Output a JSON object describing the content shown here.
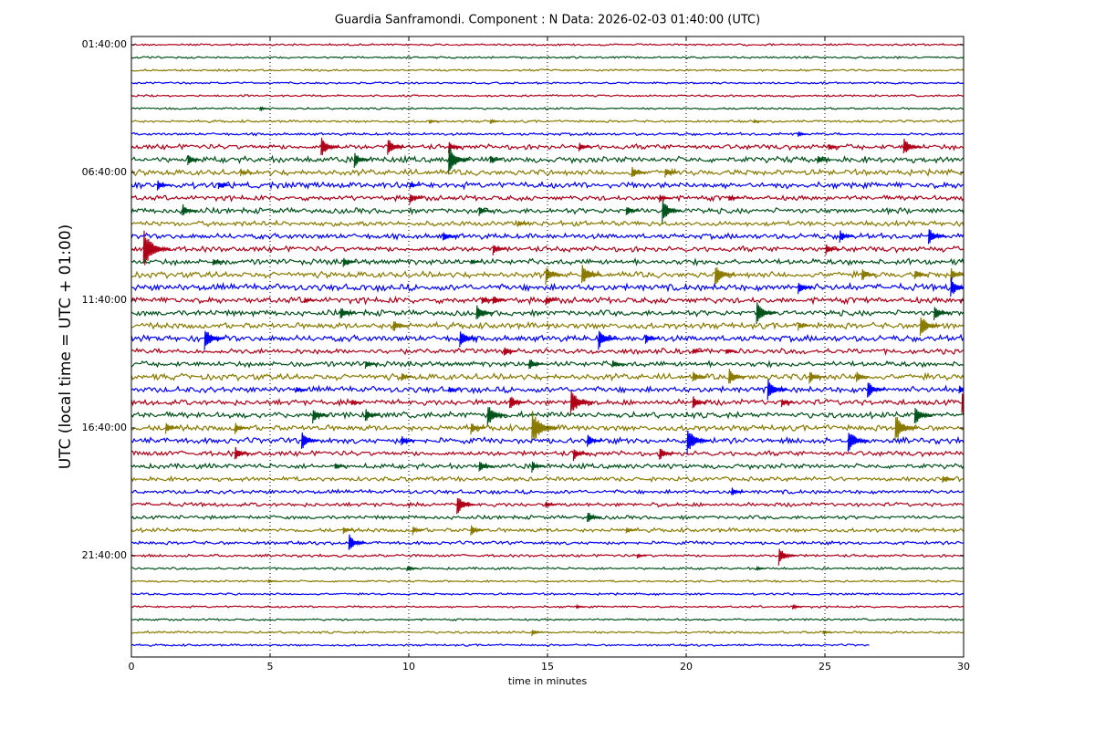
{
  "chart_data": {
    "type": "helicorder",
    "title": "Guardia Sanframondi. Component : N Data: 2026-02-03 01:40:00 (UTC)",
    "xlabel": "time in minutes",
    "ylabel": "UTC (local time = UTC + 01:00)",
    "xlim": [
      0,
      30
    ],
    "xticks": [
      0,
      5,
      10,
      15,
      20,
      25,
      30
    ],
    "ylim": [
      -0.64,
      47.93
    ],
    "y_inverted": true,
    "yticks": [
      {
        "value": 0,
        "label": "01:40:00"
      },
      {
        "value": 10,
        "label": "06:40:00"
      },
      {
        "value": 20,
        "label": "11:40:00"
      },
      {
        "value": 30,
        "label": "16:40:00"
      },
      {
        "value": 40,
        "label": "21:40:00"
      }
    ],
    "grid": true,
    "rows": [
      {
        "color": "#b00018",
        "noise": 0.06,
        "events": []
      },
      {
        "color": "#00531a",
        "noise": 0.06,
        "events": []
      },
      {
        "color": "#8a7a00",
        "noise": 0.06,
        "events": []
      },
      {
        "color": "#0000ff",
        "noise": 0.06,
        "events": []
      },
      {
        "color": "#b00018",
        "noise": 0.06,
        "events": []
      },
      {
        "color": "#00531a",
        "noise": 0.06,
        "events": [
          [
            4.7,
            0.2
          ]
        ]
      },
      {
        "color": "#8a7a00",
        "noise": 0.07,
        "events": [
          [
            10.8,
            0.2
          ],
          [
            13.0,
            0.2
          ],
          [
            22.5,
            0.15
          ]
        ]
      },
      {
        "color": "#0000ff",
        "noise": 0.08,
        "events": [
          [
            24.1,
            0.25
          ]
        ]
      },
      {
        "color": "#b00018",
        "noise": 0.15,
        "events": [
          [
            6.9,
            0.9
          ],
          [
            9.3,
            0.8
          ],
          [
            11.5,
            0.5
          ],
          [
            16.2,
            0.4
          ],
          [
            25.2,
            0.35
          ],
          [
            27.9,
            0.8
          ]
        ]
      },
      {
        "color": "#00531a",
        "noise": 0.18,
        "events": [
          [
            2.1,
            0.5
          ],
          [
            8.1,
            0.7
          ],
          [
            11.5,
            1.2
          ],
          [
            13.0,
            0.4
          ],
          [
            24.8,
            0.4
          ]
        ]
      },
      {
        "color": "#8a7a00",
        "noise": 0.17,
        "events": [
          [
            4.0,
            0.3
          ],
          [
            18.1,
            0.6
          ],
          [
            19.3,
            0.5
          ]
        ]
      },
      {
        "color": "#0000ff",
        "noise": 0.18,
        "events": [
          [
            1.0,
            0.5
          ],
          [
            3.2,
            0.4
          ],
          [
            10.1,
            0.3
          ]
        ]
      },
      {
        "color": "#b00018",
        "noise": 0.15,
        "events": [
          [
            10.1,
            0.5
          ],
          [
            19.1,
            0.4
          ],
          [
            21.6,
            0.3
          ]
        ]
      },
      {
        "color": "#00531a",
        "noise": 0.16,
        "events": [
          [
            1.9,
            0.6
          ],
          [
            12.6,
            0.4
          ],
          [
            17.9,
            0.5
          ],
          [
            19.2,
            1.0
          ]
        ]
      },
      {
        "color": "#8a7a00",
        "noise": 0.15,
        "events": [
          [
            14.0,
            0.3
          ]
        ]
      },
      {
        "color": "#0000ff",
        "noise": 0.16,
        "events": [
          [
            11.3,
            0.5
          ],
          [
            25.6,
            0.6
          ],
          [
            28.8,
            0.8
          ]
        ]
      },
      {
        "color": "#b00018",
        "noise": 0.16,
        "events": [
          [
            0.5,
            1.6
          ],
          [
            13.1,
            0.5
          ],
          [
            25.1,
            0.5
          ]
        ]
      },
      {
        "color": "#00531a",
        "noise": 0.17,
        "events": [
          [
            3.0,
            0.4
          ],
          [
            7.7,
            0.5
          ],
          [
            12.3,
            0.3
          ]
        ]
      },
      {
        "color": "#8a7a00",
        "noise": 0.18,
        "events": [
          [
            15.0,
            0.8
          ],
          [
            16.3,
            1.0
          ],
          [
            21.1,
            1.0
          ],
          [
            26.4,
            0.6
          ],
          [
            28.3,
            0.5
          ],
          [
            29.6,
            0.6
          ]
        ]
      },
      {
        "color": "#0000ff",
        "noise": 0.2,
        "events": [
          [
            24.1,
            0.6
          ],
          [
            29.6,
            0.9
          ]
        ]
      },
      {
        "color": "#b00018",
        "noise": 0.18,
        "events": [
          [
            6.3,
            0.3
          ],
          [
            12.7,
            0.4
          ],
          [
            13.1,
            0.5
          ],
          [
            15.0,
            0.4
          ]
        ]
      },
      {
        "color": "#00531a",
        "noise": 0.17,
        "events": [
          [
            7.6,
            0.6
          ],
          [
            12.5,
            0.8
          ],
          [
            22.6,
            1.0
          ],
          [
            29.0,
            0.7
          ]
        ]
      },
      {
        "color": "#8a7a00",
        "noise": 0.18,
        "events": [
          [
            9.5,
            0.6
          ],
          [
            24.1,
            0.4
          ],
          [
            28.5,
            1.0
          ]
        ]
      },
      {
        "color": "#0000ff",
        "noise": 0.18,
        "events": [
          [
            2.7,
            1.0
          ],
          [
            11.9,
            0.8
          ],
          [
            16.9,
            0.9
          ],
          [
            18.6,
            0.5
          ]
        ]
      },
      {
        "color": "#b00018",
        "noise": 0.16,
        "events": [
          [
            13.5,
            0.5
          ],
          [
            20.3,
            0.3
          ],
          [
            21.5,
            0.3
          ]
        ]
      },
      {
        "color": "#00531a",
        "noise": 0.16,
        "events": [
          [
            8.5,
            0.4
          ],
          [
            14.4,
            0.6
          ],
          [
            17.4,
            0.4
          ]
        ]
      },
      {
        "color": "#8a7a00",
        "noise": 0.18,
        "events": [
          [
            9.8,
            0.4
          ],
          [
            20.3,
            0.6
          ],
          [
            21.6,
            0.8
          ],
          [
            24.5,
            0.6
          ],
          [
            26.2,
            0.5
          ]
        ]
      },
      {
        "color": "#0000ff",
        "noise": 0.18,
        "events": [
          [
            6.0,
            0.3
          ],
          [
            11.5,
            0.3
          ],
          [
            23.0,
            1.0
          ],
          [
            26.6,
            0.8
          ],
          [
            29.9,
            0.4
          ]
        ]
      },
      {
        "color": "#b00018",
        "noise": 0.17,
        "events": [
          [
            8.0,
            0.3
          ],
          [
            13.7,
            0.7
          ],
          [
            15.9,
            1.2
          ],
          [
            20.3,
            0.6
          ],
          [
            23.5,
            0.4
          ],
          [
            30.0,
            1.2
          ]
        ]
      },
      {
        "color": "#00531a",
        "noise": 0.18,
        "events": [
          [
            6.6,
            0.7
          ],
          [
            8.5,
            0.6
          ],
          [
            12.9,
            1.0
          ],
          [
            28.3,
            0.9
          ]
        ]
      },
      {
        "color": "#8a7a00",
        "noise": 0.17,
        "events": [
          [
            1.3,
            0.5
          ],
          [
            3.8,
            0.5
          ],
          [
            12.3,
            0.6
          ],
          [
            14.5,
            1.5
          ],
          [
            27.6,
            1.2
          ]
        ]
      },
      {
        "color": "#0000ff",
        "noise": 0.17,
        "events": [
          [
            6.2,
            0.8
          ],
          [
            9.8,
            0.5
          ],
          [
            16.5,
            0.6
          ],
          [
            20.1,
            1.2
          ],
          [
            25.9,
            1.1
          ]
        ]
      },
      {
        "color": "#b00018",
        "noise": 0.15,
        "events": [
          [
            3.8,
            0.6
          ],
          [
            16.0,
            0.6
          ],
          [
            19.1,
            0.6
          ]
        ]
      },
      {
        "color": "#00531a",
        "noise": 0.15,
        "events": [
          [
            7.4,
            0.3
          ],
          [
            12.6,
            0.6
          ],
          [
            14.5,
            0.5
          ]
        ]
      },
      {
        "color": "#8a7a00",
        "noise": 0.13,
        "events": [
          [
            29.3,
            0.4
          ]
        ]
      },
      {
        "color": "#0000ff",
        "noise": 0.12,
        "events": [
          [
            21.7,
            0.4
          ]
        ]
      },
      {
        "color": "#b00018",
        "noise": 0.12,
        "events": [
          [
            11.8,
            0.9
          ],
          [
            15.0,
            0.3
          ]
        ]
      },
      {
        "color": "#00531a",
        "noise": 0.11,
        "events": [
          [
            16.5,
            0.6
          ]
        ]
      },
      {
        "color": "#8a7a00",
        "noise": 0.12,
        "events": [
          [
            7.7,
            0.3
          ],
          [
            10.2,
            0.4
          ],
          [
            12.3,
            0.5
          ],
          [
            17.9,
            0.3
          ]
        ]
      },
      {
        "color": "#0000ff",
        "noise": 0.1,
        "events": [
          [
            7.9,
            0.8
          ]
        ]
      },
      {
        "color": "#b00018",
        "noise": 0.08,
        "events": [
          [
            18.3,
            0.2
          ],
          [
            23.4,
            0.8
          ]
        ]
      },
      {
        "color": "#00531a",
        "noise": 0.07,
        "events": [
          [
            10.0,
            0.3
          ],
          [
            22.6,
            0.2
          ]
        ]
      },
      {
        "color": "#8a7a00",
        "noise": 0.06,
        "events": [
          [
            5.0,
            0.15
          ]
        ]
      },
      {
        "color": "#0000ff",
        "noise": 0.06,
        "events": []
      },
      {
        "color": "#b00018",
        "noise": 0.06,
        "events": [
          [
            16.1,
            0.15
          ],
          [
            23.9,
            0.25
          ]
        ]
      },
      {
        "color": "#00531a",
        "noise": 0.06,
        "events": []
      },
      {
        "color": "#8a7a00",
        "noise": 0.07,
        "events": [
          [
            14.5,
            0.3
          ],
          [
            25.0,
            0.2
          ]
        ]
      },
      {
        "color": "#0000ff",
        "noise": 0.06,
        "events": [],
        "end": 26.6
      }
    ]
  }
}
